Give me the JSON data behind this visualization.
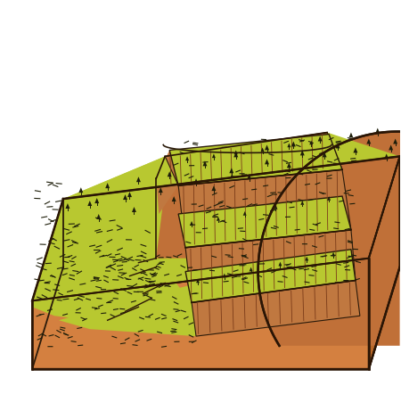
{
  "background_color": "#ffffff",
  "grass": "#b5c830",
  "grass_dark": "#a0b820",
  "brown_base_front": "#d4894a",
  "brown_base_right": "#b8703a",
  "brown_base_bottom": "#c07838",
  "brown_slide_scar": "#b5652a",
  "brown_slide_dark": "#9a4e20",
  "brown_rock_face": "#c07040",
  "brown_rock_stripe": "#8a4520",
  "outline": "#2a1a0a",
  "figsize": [
    4.5,
    4.7
  ],
  "dpi": 100
}
